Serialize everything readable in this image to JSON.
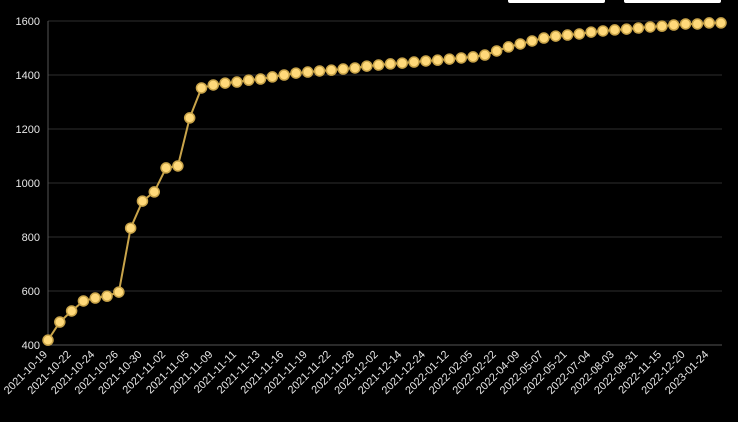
{
  "chart_data": {
    "type": "line",
    "categories": [
      "2021-10-19",
      null,
      "2021-10-22",
      null,
      "2021-10-24",
      null,
      "2021-10-26",
      null,
      "2021-10-30",
      null,
      "2021-11-02",
      null,
      "2021-11-05",
      null,
      "2021-11-09",
      null,
      "2021-11-11",
      null,
      "2021-11-13",
      null,
      "2021-11-16",
      null,
      "2021-11-19",
      null,
      "2021-11-22",
      null,
      "2021-11-28",
      null,
      "2021-12-02",
      null,
      "2021-12-14",
      null,
      "2021-12-24",
      null,
      "2022-01-12",
      null,
      "2022-02-05",
      null,
      "2022-02-22",
      null,
      "2022-04-09",
      null,
      "2022-05-07",
      null,
      "2022-05-21",
      null,
      "2022-07-04",
      null,
      "2022-08-03",
      null,
      "2022-08-31",
      null,
      "2022-11-15",
      null,
      "2022-12-20",
      null,
      "2023-01-24",
      null
    ],
    "series": [
      {
        "color": "#c9a44a",
        "values": [
          418,
          485,
          526,
          563,
          574,
          581,
          596,
          833,
          933,
          967,
          1056,
          1063,
          1241,
          1352,
          1363,
          1370,
          1374,
          1381,
          1385,
          1393,
          1400,
          1407,
          1411,
          1415,
          1418,
          1422,
          1426,
          1433,
          1437,
          1441,
          1444,
          1448,
          1452,
          1455,
          1459,
          1463,
          1467,
          1474,
          1489,
          1504,
          1515,
          1526,
          1537,
          1544,
          1548,
          1552,
          1559,
          1563,
          1567,
          1570,
          1574,
          1578,
          1581,
          1585,
          1589,
          1589,
          1593,
          1593
        ]
      }
    ],
    "ylim": [
      400,
      1600
    ],
    "yticks": [
      400,
      600,
      800,
      1000,
      1200,
      1400,
      1600
    ],
    "grid": true
  }
}
